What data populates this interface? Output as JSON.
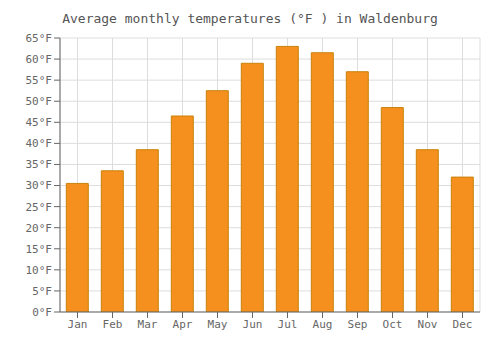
{
  "chart_data": {
    "type": "bar",
    "title": "Average monthly temperatures (°F ) in Waldenburg",
    "categories": [
      "Jan",
      "Feb",
      "Mar",
      "Apr",
      "May",
      "Jun",
      "Jul",
      "Aug",
      "Sep",
      "Oct",
      "Nov",
      "Dec"
    ],
    "values": [
      30.5,
      33.5,
      38.5,
      46.5,
      52.5,
      59.0,
      63.0,
      61.5,
      57.0,
      48.5,
      38.5,
      32.0
    ],
    "color": "#F5901E",
    "ylim": [
      0,
      65
    ],
    "yticks": [
      {
        "value": 0,
        "label": "0°F"
      },
      {
        "value": 5,
        "label": "5°F"
      },
      {
        "value": 10,
        "label": "10°F"
      },
      {
        "value": 15,
        "label": "15°F"
      },
      {
        "value": 20,
        "label": "20°F"
      },
      {
        "value": 25,
        "label": "25°F"
      },
      {
        "value": 30,
        "label": "30°F"
      },
      {
        "value": 35,
        "label": "35°F"
      },
      {
        "value": 40,
        "label": "40°F"
      },
      {
        "value": 45,
        "label": "45°F"
      },
      {
        "value": 50,
        "label": "50°F"
      },
      {
        "value": 55,
        "label": "55°F"
      },
      {
        "value": 60,
        "label": "60°F"
      },
      {
        "value": 65,
        "label": "65°F"
      }
    ],
    "grid": true
  }
}
